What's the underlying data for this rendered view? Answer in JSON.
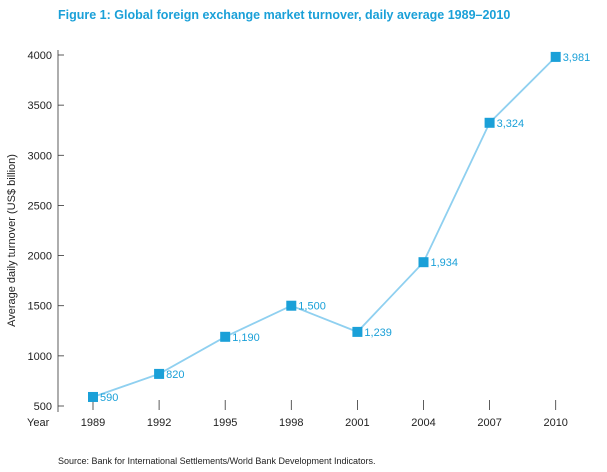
{
  "title": "Figure 1: Global foreign exchange market turnover, daily average 1989–2010",
  "source": "Source: Bank for International Settlements/World Bank Development Indicators.",
  "colors": {
    "accent": "#1aa0d8",
    "line": "#8fd0f0",
    "marker": "#1aa0d8",
    "axis": "#333333"
  },
  "chart_data": {
    "type": "line",
    "title": "Figure 1: Global foreign exchange market turnover, daily average 1989–2010",
    "xlabel": "Year",
    "ylabel": "Average daily turnover (US$ billion)",
    "categories": [
      "1989",
      "1992",
      "1995",
      "1998",
      "2001",
      "2004",
      "2007",
      "2010"
    ],
    "series": [
      {
        "values": [
          590,
          820,
          1190,
          1500,
          1239,
          1934,
          3324,
          3981
        ],
        "labels": [
          "590",
          "820",
          "1,190",
          "1,500",
          "1,239",
          "1,934",
          "3,324",
          "3,981"
        ]
      }
    ],
    "y_ticks": [
      500,
      1000,
      1500,
      2000,
      2500,
      3000,
      3500,
      4000
    ],
    "y_tick_labels": [
      "500",
      "1000",
      "1500",
      "2000",
      "2500",
      "3000",
      "3500",
      "4000"
    ],
    "ylim": [
      500,
      4000
    ],
    "grid": false,
    "legend": "none"
  }
}
